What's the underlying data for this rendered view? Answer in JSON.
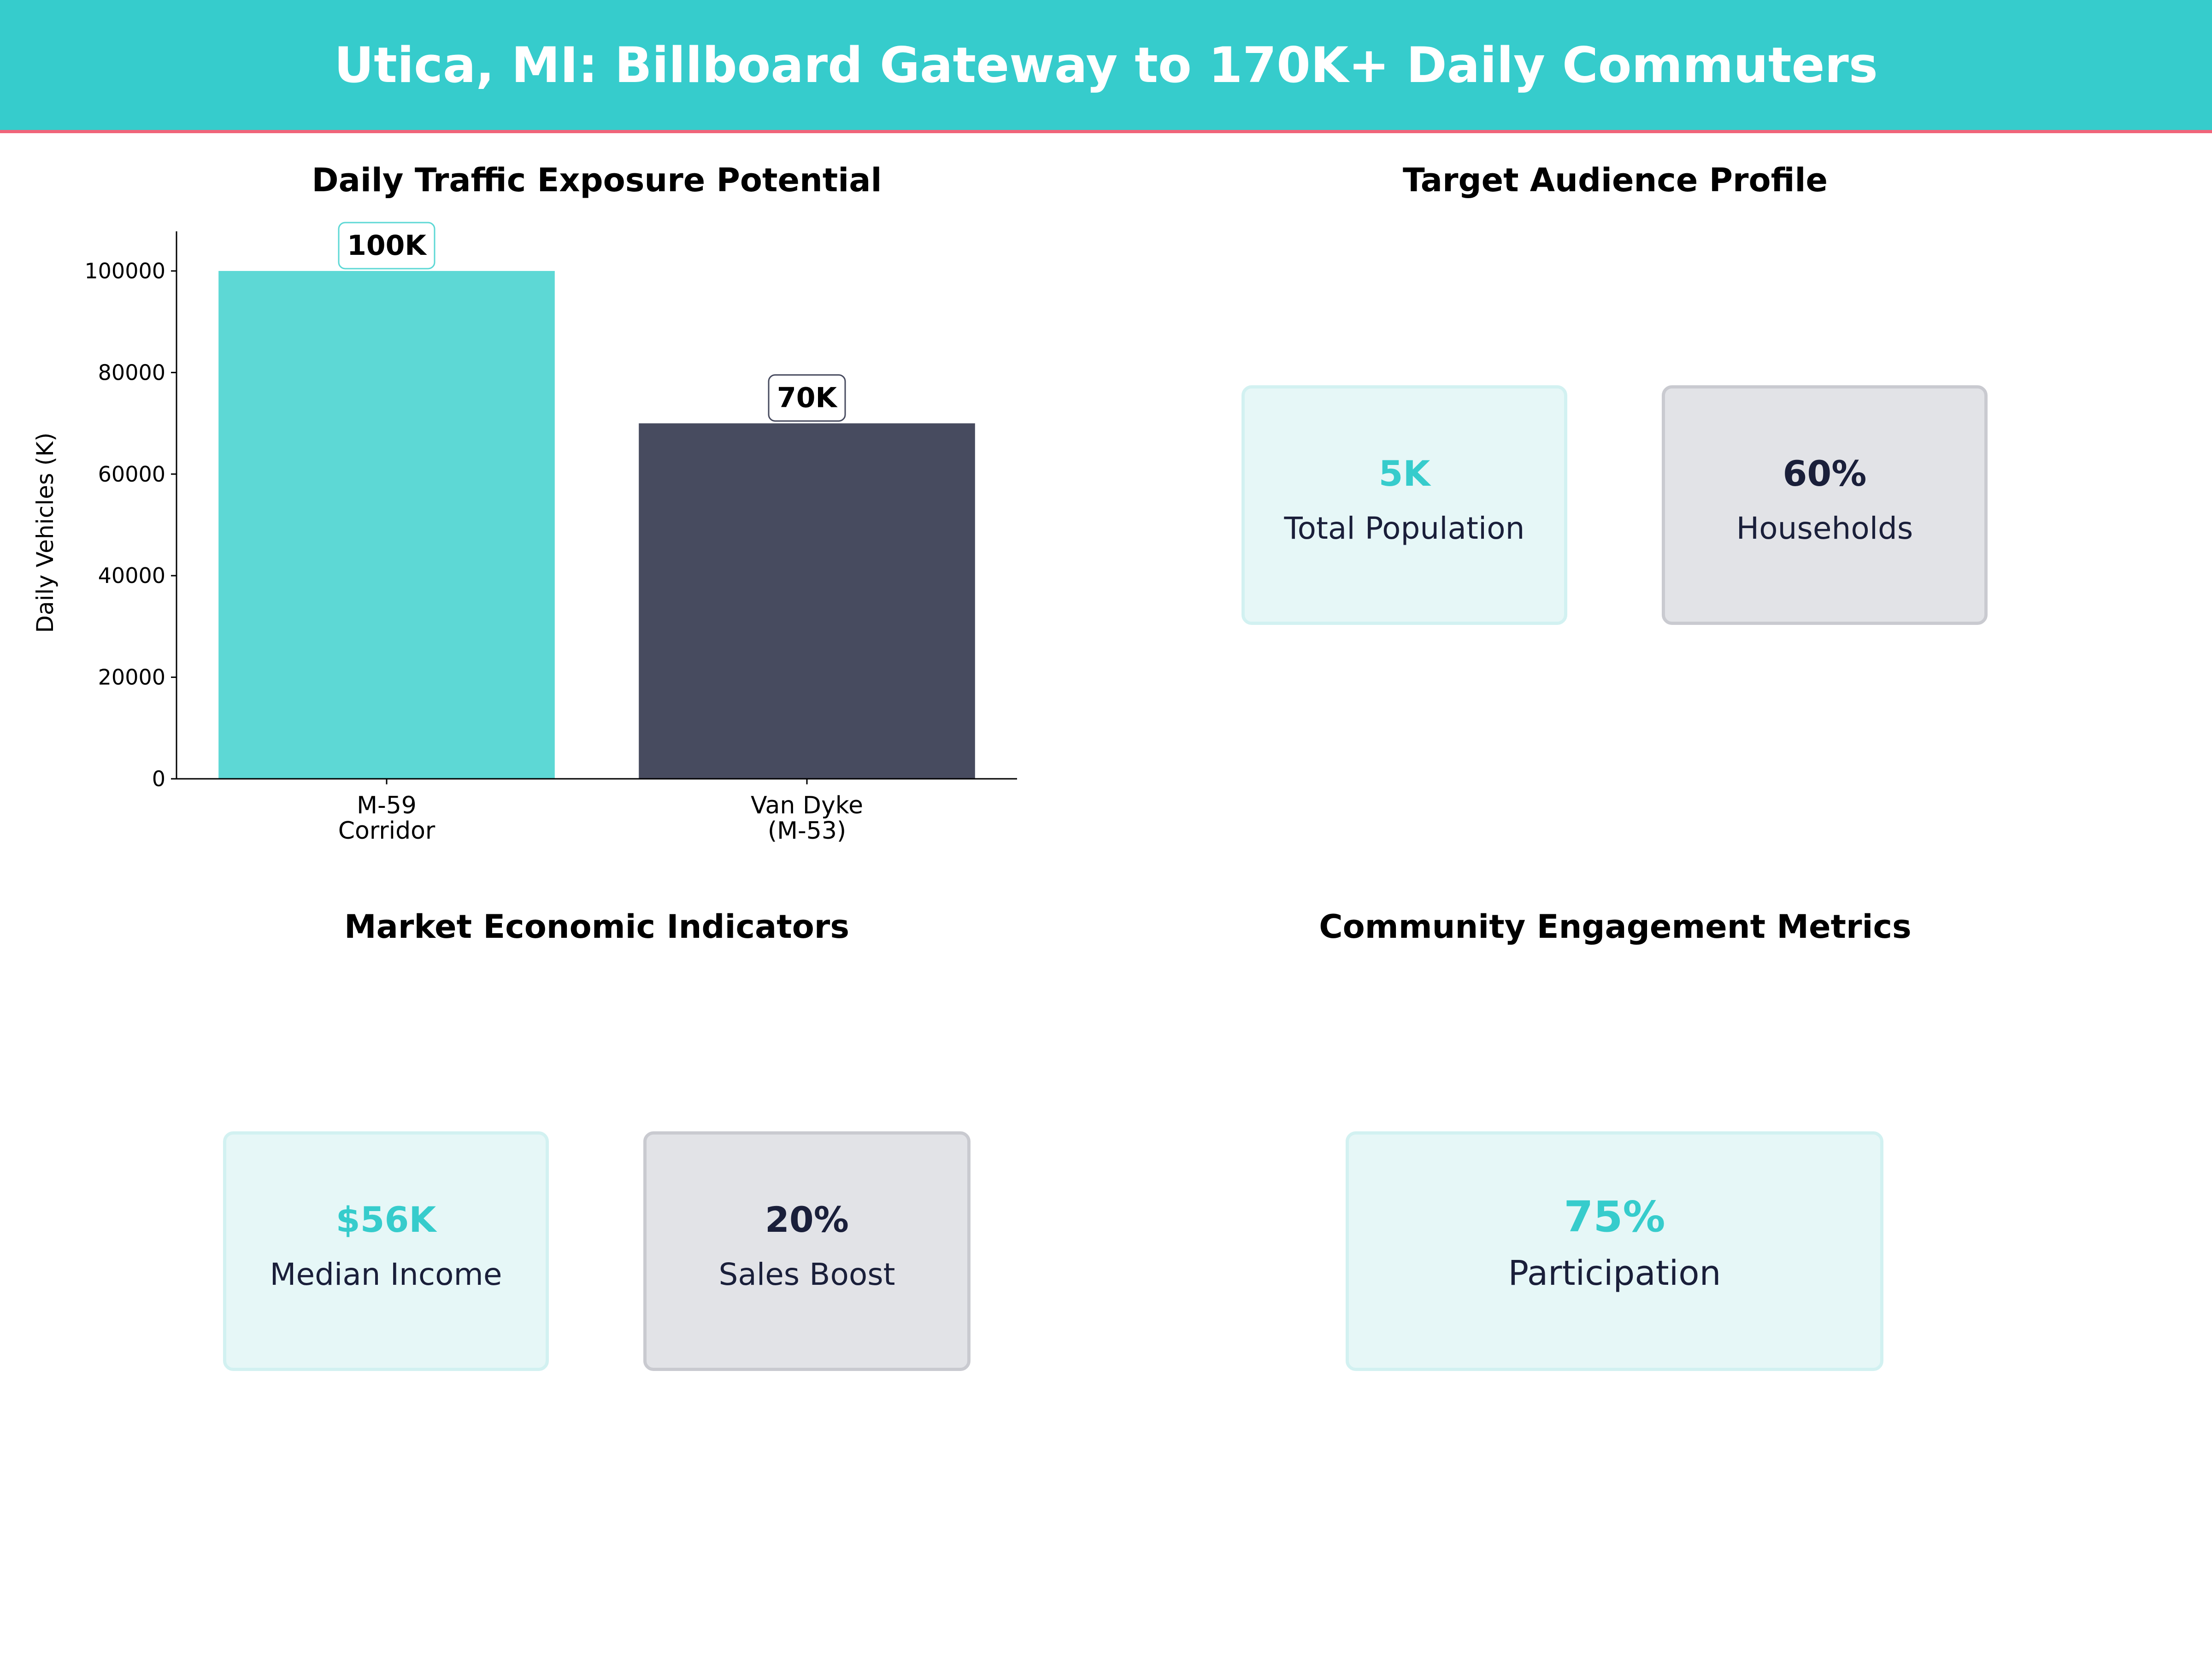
{
  "header": {
    "title": "Utica, MI: Billboard Gateway to 170K+ Daily Commuters"
  },
  "colors": {
    "accent": "#36CCCC",
    "secondary": "#474B5F",
    "divider": "#F0647A",
    "text_dark": "#1A1F3A"
  },
  "chart_data": {
    "type": "bar",
    "title": "Daily Traffic Exposure Potential",
    "xlabel": "",
    "ylabel": "Daily Vehicles (K)",
    "categories": [
      "M-59\nCorridor",
      "Van Dyke\n(M-53)"
    ],
    "values": [
      100000,
      70000
    ],
    "data_labels": [
      "100K",
      "70K"
    ],
    "bar_colors": [
      "#5DD8D5",
      "#474B5F"
    ],
    "ylim": [
      0,
      107800
    ],
    "yticks": [
      0,
      20000,
      40000,
      60000,
      80000,
      100000
    ],
    "grid": false
  },
  "audience": {
    "title": "Target Audience Profile",
    "cards": [
      {
        "value": "5K",
        "label": "Total Population"
      },
      {
        "value": "60%",
        "label": "Households"
      }
    ]
  },
  "economic": {
    "title": "Market Economic Indicators",
    "cards": [
      {
        "value": "$56K",
        "label": "Median Income"
      },
      {
        "value": "20%",
        "label": "Sales Boost"
      }
    ]
  },
  "community": {
    "title": "Community Engagement Metrics",
    "cards": [
      {
        "value": "75%",
        "label": "Participation"
      }
    ]
  }
}
